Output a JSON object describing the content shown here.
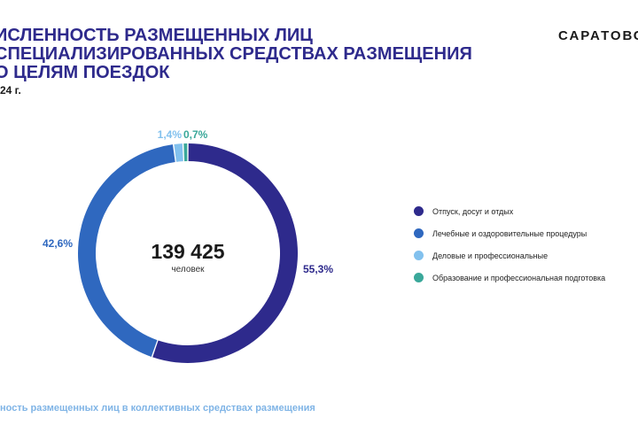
{
  "header": {
    "title_lines": [
      "ИСЛЕННОСТЬ РАЗМЕЩЕННЫХ ЛИЦ",
      " СПЕЦИАЛИЗИРОВАННЫХ СРЕДСТВАХ РАЗМЕЩЕНИЯ",
      "О ЦЕЛЯМ ПОЕЗДОК"
    ],
    "subtitle": "24 г.",
    "brand": "САРАТОВС"
  },
  "footnote": "ность размещенных лиц в коллективных средствах размещения",
  "chart_data": {
    "type": "pie",
    "donut": true,
    "center_value": "139 425",
    "center_unit": "человек",
    "categories": [
      "Отпуск, досуг и отдых",
      "Лечебные и оздоровительные процедуры",
      "Деловые и профессиональные",
      "Образование и профессиональная подготовка"
    ],
    "values": [
      55.3,
      42.6,
      1.4,
      0.7
    ],
    "value_labels": [
      "55,3%",
      "42,6%",
      "1,4%",
      "0,7%"
    ],
    "colors": [
      "#2e2a8c",
      "#2f68bf",
      "#82c1ee",
      "#3aa89a"
    ],
    "legend_position": "right"
  }
}
